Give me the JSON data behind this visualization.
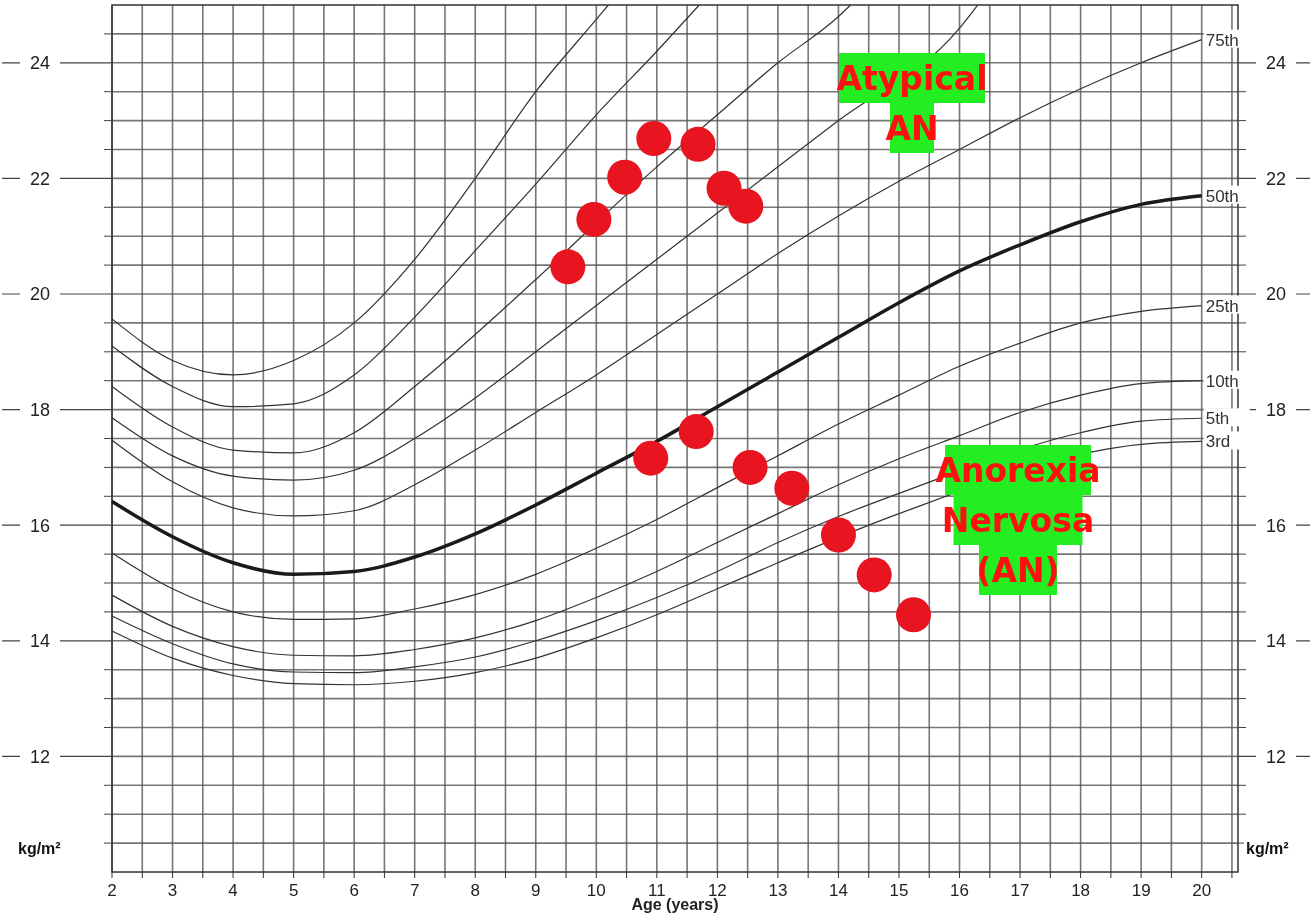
{
  "chart_data": {
    "type": "line",
    "xlabel": "Age (years)",
    "ylabel": "kg/m²",
    "y2label": "kg/m²",
    "xlim": [
      2,
      20.6
    ],
    "ylim": [
      10,
      25
    ],
    "y2lim": [
      10,
      25
    ],
    "xticks": [
      2,
      {
        "value": 2.5,
        "label": null
      },
      3,
      {
        "value": 3.5,
        "label": null
      },
      4,
      {
        "value": 4.5,
        "label": null
      },
      5,
      {
        "value": 5.5,
        "label": null
      },
      6,
      {
        "value": 6.5,
        "label": null
      },
      7,
      {
        "value": 7.5,
        "label": null
      },
      8,
      {
        "value": 8.5,
        "label": null
      },
      9,
      {
        "value": 9.5,
        "label": null
      },
      10,
      {
        "value": 10.5,
        "label": null
      },
      11,
      {
        "value": 11.5,
        "label": null
      },
      12,
      {
        "value": 12.5,
        "label": null
      },
      13,
      {
        "value": 13.5,
        "label": null
      },
      14,
      {
        "value": 14.5,
        "label": null
      },
      15,
      {
        "value": 15.5,
        "label": null
      },
      16,
      {
        "value": 16.5,
        "label": null
      },
      17,
      {
        "value": 17.5,
        "label": null
      },
      18,
      {
        "value": 18.5,
        "label": null
      },
      19,
      {
        "value": 19.5,
        "label": null
      },
      20,
      {
        "value": 20.5,
        "label": null
      }
    ],
    "yticks": [
      {
        "value": 10.5,
        "label": null
      },
      {
        "value": 11,
        "label": null
      },
      {
        "value": 11.5,
        "label": null
      },
      12,
      {
        "value": 12.5,
        "label": null
      },
      {
        "value": 13,
        "label": null
      },
      {
        "value": 13.5,
        "label": null
      },
      14,
      {
        "value": 14.5,
        "label": null
      },
      {
        "value": 15,
        "label": null
      },
      {
        "value": 15.5,
        "label": null
      },
      16,
      {
        "value": 16.5,
        "label": null
      },
      {
        "value": 17,
        "label": null
      },
      {
        "value": 17.5,
        "label": null
      },
      18,
      {
        "value": 18.5,
        "label": null
      },
      {
        "value": 19,
        "label": null
      },
      {
        "value": 19.5,
        "label": null
      },
      20,
      {
        "value": 20.5,
        "label": null
      },
      {
        "value": 21,
        "label": null
      },
      {
        "value": 21.5,
        "label": null
      },
      22,
      {
        "value": 22.5,
        "label": null
      },
      {
        "value": 23,
        "label": null
      },
      {
        "value": 23.5,
        "label": null
      },
      24,
      {
        "value": 24.5,
        "label": null
      }
    ],
    "y2ticks": [
      {
        "value": 10.5,
        "label": null
      },
      {
        "value": 11,
        "label": null
      },
      {
        "value": 11.5,
        "label": null
      },
      12,
      {
        "value": 12.5,
        "label": null
      },
      {
        "value": 13,
        "label": null
      },
      {
        "value": 13.5,
        "label": null
      },
      14,
      {
        "value": 14.5,
        "label": null
      },
      {
        "value": 15,
        "label": null
      },
      {
        "value": 15.5,
        "label": null
      },
      16,
      {
        "value": 16.5,
        "label": null
      },
      {
        "value": 17,
        "label": null
      },
      {
        "value": 17.5,
        "label": null
      },
      18,
      {
        "value": 18.5,
        "label": null
      },
      {
        "value": 19,
        "label": null
      },
      {
        "value": 19.5,
        "label": null
      },
      20,
      {
        "value": 20.5,
        "label": null
      },
      {
        "value": 21,
        "label": null
      },
      {
        "value": 21.5,
        "label": null
      },
      22,
      {
        "value": 22.5,
        "label": null
      },
      {
        "value": 23,
        "label": null
      },
      {
        "value": 23.5,
        "label": null
      },
      24,
      {
        "value": 24.5,
        "label": null
      }
    ],
    "grid": true,
    "marker": "none",
    "line_style": "solid",
    "legend": false,
    "series": [
      {
        "color": "#333333",
        "x": [
          2,
          3,
          4,
          5,
          6,
          7,
          8,
          9,
          10,
          10.2
        ],
        "values": [
          19.57,
          18.85,
          18.6,
          18.85,
          19.5,
          20.6,
          22.0,
          23.5,
          24.75,
          25
        ]
      },
      {
        "color": "#333333",
        "x": [
          2,
          3,
          4,
          5,
          6,
          7,
          8,
          9,
          10,
          11,
          11.7
        ],
        "values": [
          19.1,
          18.4,
          18.05,
          18.1,
          18.6,
          19.6,
          20.75,
          21.9,
          23.1,
          24.2,
          25
        ]
      },
      {
        "color": "#333333",
        "x": [
          2,
          3,
          4,
          5,
          6,
          7,
          8,
          9,
          11,
          12,
          13,
          14,
          14.2
        ],
        "values": [
          18.4,
          17.7,
          17.3,
          17.25,
          17.6,
          18.4,
          19.3,
          20.25,
          22.2,
          23.1,
          24.0,
          24.8,
          25
        ]
      },
      {
        "color": "#333333",
        "x": [
          2,
          3,
          4,
          5,
          6,
          7,
          8,
          9,
          10,
          11,
          12,
          13,
          14,
          16,
          16.3
        ],
        "values": [
          17.86,
          17.2,
          16.85,
          16.78,
          16.95,
          17.5,
          18.2,
          19.0,
          19.8,
          20.6,
          21.4,
          22.2,
          23.0,
          24.6,
          25
        ]
      },
      {
        "name": "75th",
        "color": "#333333",
        "x": [
          2,
          3,
          4,
          5,
          6,
          7,
          8,
          9,
          10,
          11,
          12,
          13,
          14,
          15,
          16,
          17,
          18,
          19,
          20
        ],
        "values": [
          17.47,
          16.75,
          16.3,
          16.16,
          16.25,
          16.7,
          17.3,
          17.95,
          18.6,
          19.3,
          20.0,
          20.7,
          21.35,
          21.95,
          22.5,
          23.05,
          23.55,
          24.0,
          24.4
        ]
      },
      {
        "name": "50th",
        "color": "#1a1a1a",
        "x": [
          2,
          3,
          4,
          5,
          6,
          7,
          8,
          9,
          10,
          11,
          12,
          13,
          14,
          15,
          16,
          17,
          18,
          19,
          20
        ],
        "values": [
          16.41,
          15.8,
          15.35,
          15.15,
          15.2,
          15.45,
          15.85,
          16.35,
          16.9,
          17.45,
          18.05,
          18.65,
          19.25,
          19.85,
          20.4,
          20.85,
          21.25,
          21.55,
          21.7
        ]
      },
      {
        "name": "25th",
        "color": "#333333",
        "x": [
          2,
          3,
          4,
          5,
          6,
          7,
          8,
          9,
          10,
          11,
          12,
          13,
          14,
          15,
          16,
          17,
          18,
          19,
          20
        ],
        "values": [
          15.52,
          14.9,
          14.5,
          14.37,
          14.38,
          14.55,
          14.8,
          15.15,
          15.6,
          16.1,
          16.65,
          17.2,
          17.75,
          18.25,
          18.75,
          19.15,
          19.5,
          19.7,
          19.8
        ]
      },
      {
        "name": "10th",
        "color": "#333333",
        "x": [
          2,
          3,
          4,
          5,
          6,
          7,
          8,
          9,
          10,
          11,
          12,
          13,
          14,
          15,
          16,
          17,
          18,
          19,
          20
        ],
        "values": [
          14.79,
          14.25,
          13.9,
          13.75,
          13.74,
          13.85,
          14.05,
          14.35,
          14.75,
          15.2,
          15.7,
          16.2,
          16.7,
          17.15,
          17.55,
          17.95,
          18.25,
          18.45,
          18.5
        ]
      },
      {
        "name": "5th",
        "color": "#333333",
        "x": [
          2,
          3,
          4,
          5,
          6,
          7,
          8,
          9,
          10,
          11,
          12,
          13,
          14,
          15,
          18,
          19,
          20
        ],
        "values": [
          14.43,
          13.95,
          13.6,
          13.46,
          13.45,
          13.55,
          13.72,
          14.0,
          14.35,
          14.75,
          15.2,
          15.7,
          16.15,
          16.55,
          17.6,
          17.8,
          17.85
        ]
      },
      {
        "name": "3rd",
        "color": "#333333",
        "x": [
          2,
          3,
          4,
          5,
          6,
          7,
          8,
          9,
          10,
          11,
          12,
          13,
          15,
          19,
          20
        ],
        "values": [
          14.17,
          13.7,
          13.4,
          13.26,
          13.24,
          13.3,
          13.45,
          13.7,
          14.05,
          14.45,
          14.9,
          15.35,
          16.2,
          17.4,
          17.45
        ]
      },
      {
        "type": "scatter",
        "marker": "circle",
        "color": "#e8141f",
        "x": [
          9.53,
          9.96,
          10.47,
          10.95,
          11.68,
          12.11,
          12.47
        ],
        "values": [
          20.47,
          21.29,
          22.02,
          22.69,
          22.59,
          21.83,
          21.52
        ]
      },
      {
        "type": "scatter",
        "marker": "circle",
        "color": "#e8141f",
        "x": [
          10.9,
          11.65,
          12.54,
          13.23,
          14.0,
          14.59,
          15.24
        ],
        "values": [
          17.16,
          17.62,
          17.0,
          16.64,
          15.83,
          15.14,
          14.45
        ]
      }
    ],
    "annotations": [
      "Atypical AN",
      "Anorexia Nervosa (AN)"
    ]
  }
}
